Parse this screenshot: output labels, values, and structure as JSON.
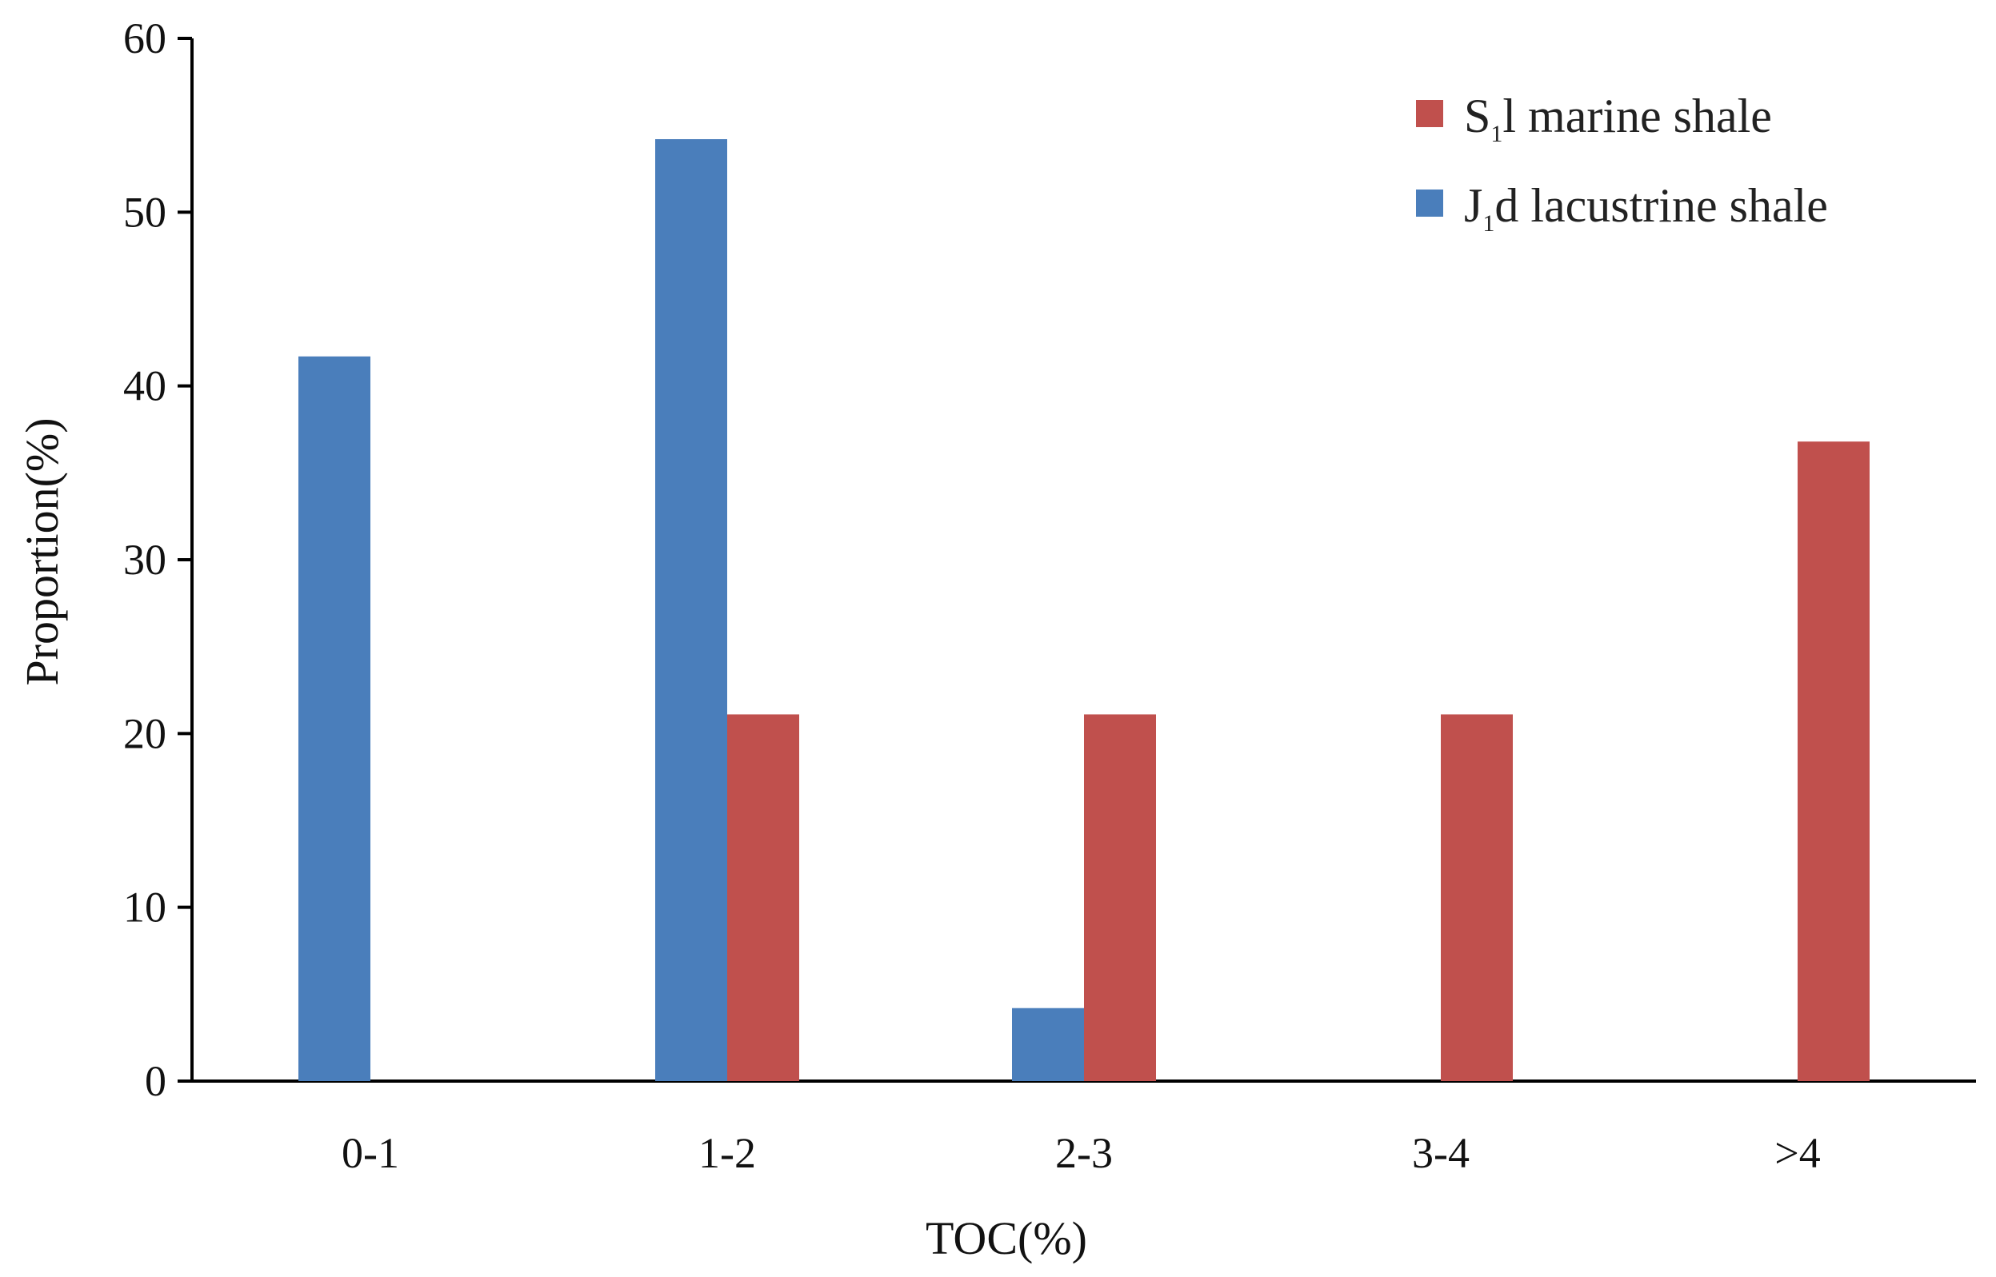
{
  "chart_data": {
    "type": "bar",
    "title": "",
    "xlabel": "TOC(%)",
    "ylabel": "Proportion(%)",
    "ylim": [
      0,
      60
    ],
    "yticks": [
      0,
      10,
      20,
      30,
      40,
      50,
      60
    ],
    "categories": [
      "0-1",
      "1-2",
      "2-3",
      "3-4",
      ">4"
    ],
    "series": [
      {
        "name": "J1d lacustrine shale",
        "legend_main": "J",
        "legend_sub": "1",
        "legend_rest": "d lacustrine shale",
        "color": "#4a7ebb",
        "values": [
          41.7,
          54.2,
          4.2,
          0,
          0
        ]
      },
      {
        "name": "S1l marine shale",
        "legend_main": "S",
        "legend_sub": "1",
        "legend_rest": "l marine shale",
        "color": "#c0504d",
        "values": [
          0,
          21.1,
          21.1,
          21.1,
          36.8
        ]
      }
    ],
    "legend_position": "top-right",
    "legend_order": [
      1,
      0
    ],
    "grid": false
  }
}
